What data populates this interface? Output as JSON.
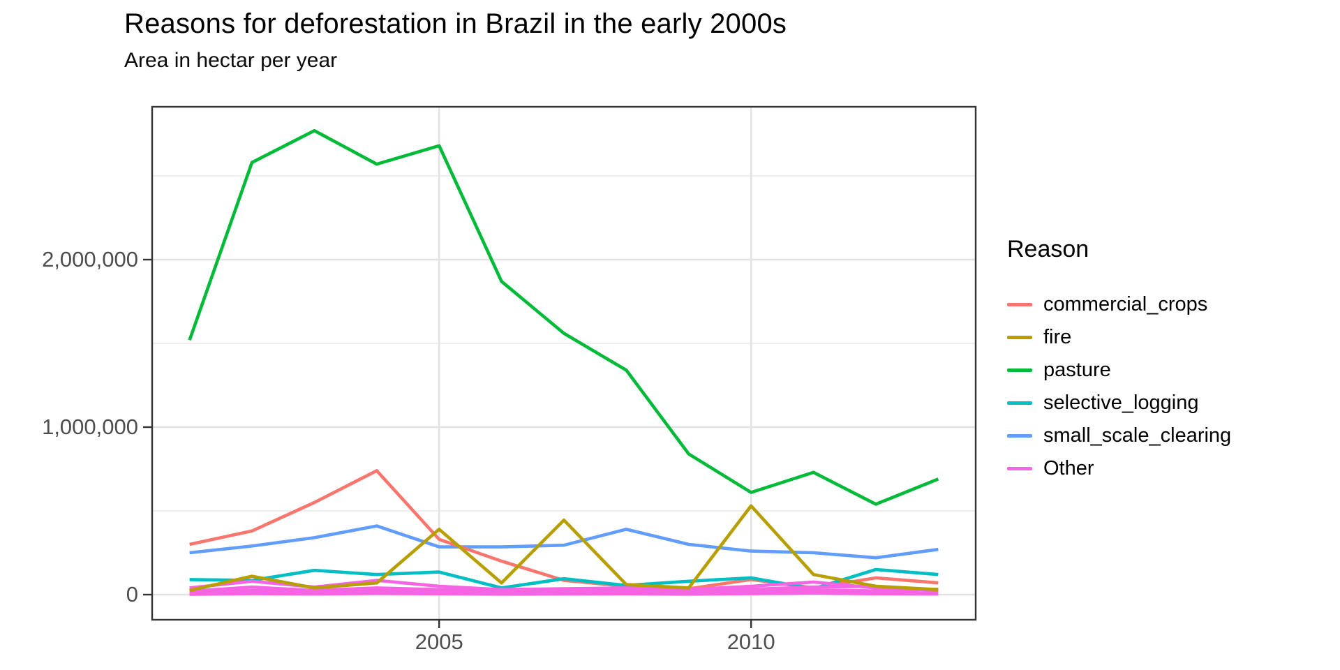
{
  "chart_data": {
    "type": "line",
    "title": "Reasons for deforestation in Brazil in the early 2000s",
    "subtitle": "Area in hectar per year",
    "legend_title": "Reason",
    "legend_position": "right",
    "grid": "major and minor horizontal gridlines, major vertical gridlines only",
    "x": [
      2001,
      2002,
      2003,
      2004,
      2005,
      2006,
      2007,
      2008,
      2009,
      2010,
      2011,
      2012,
      2013
    ],
    "x_domain": [
      2000.4,
      2013.6
    ],
    "y_domain": [
      -150000,
      2912500
    ],
    "x_ticks": [
      {
        "value": 2005,
        "label": "2005"
      },
      {
        "value": 2010,
        "label": "2010"
      }
    ],
    "y_ticks": [
      {
        "value": 0,
        "label": "0"
      },
      {
        "value": 1000000,
        "label": "1,000,000"
      },
      {
        "value": 2000000,
        "label": "2,000,000"
      }
    ],
    "y_minor": [
      500000,
      1500000,
      2500000
    ],
    "series": [
      {
        "name": "commercial_crops",
        "color": "#F8766D",
        "values": [
          300000,
          380000,
          550000,
          740000,
          330000,
          200000,
          85000,
          50000,
          35000,
          90000,
          40000,
          100000,
          70000
        ]
      },
      {
        "name": "fire",
        "color": "#B79F00",
        "values": [
          25000,
          110000,
          40000,
          70000,
          390000,
          70000,
          445000,
          60000,
          40000,
          530000,
          120000,
          50000,
          30000
        ]
      },
      {
        "name": "pasture",
        "color": "#00BA38",
        "values": [
          1520000,
          2580000,
          2770000,
          2570000,
          2680000,
          1870000,
          1560000,
          1340000,
          840000,
          610000,
          730000,
          540000,
          690000
        ]
      },
      {
        "name": "selective_logging",
        "color": "#00BFC4",
        "values": [
          90000,
          85000,
          145000,
          120000,
          135000,
          40000,
          95000,
          55000,
          80000,
          100000,
          35000,
          150000,
          120000
        ]
      },
      {
        "name": "small_scale_clearing",
        "color": "#619CFF",
        "values": [
          250000,
          290000,
          340000,
          410000,
          285000,
          285000,
          295000,
          390000,
          300000,
          260000,
          250000,
          220000,
          270000
        ]
      },
      {
        "name": "Other",
        "color": "#F564E3",
        "strands": [
          [
            40000,
            80000,
            45000,
            85000,
            50000,
            30000,
            35000,
            40000,
            30000,
            50000,
            75000,
            40000,
            30000
          ],
          [
            20000,
            45000,
            25000,
            40000,
            30000,
            18000,
            22000,
            28000,
            18000,
            32000,
            45000,
            50000,
            22000
          ],
          [
            12000,
            25000,
            15000,
            28000,
            22000,
            12000,
            15000,
            18000,
            12000,
            22000,
            28000,
            22000,
            32000
          ],
          [
            6000,
            14000,
            9000,
            16000,
            13000,
            7000,
            9000,
            11000,
            9000,
            13000,
            16000,
            11000,
            9000
          ],
          [
            2000,
            6000,
            4000,
            7000,
            5000,
            3000,
            4000,
            5000,
            3000,
            6000,
            9000,
            5000,
            4000
          ]
        ]
      }
    ],
    "draw_order": [
      "pasture",
      "small_scale_clearing",
      "commercial_crops",
      "selective_logging",
      "Other",
      "fire"
    ],
    "colors": {
      "background": "#FFFFFF",
      "panel_border": "#333333",
      "grid_major": "#E2E2E2",
      "grid_minor": "#EFEFEF",
      "tick_text": "#4d4d4d",
      "title_text": "#000000"
    }
  }
}
